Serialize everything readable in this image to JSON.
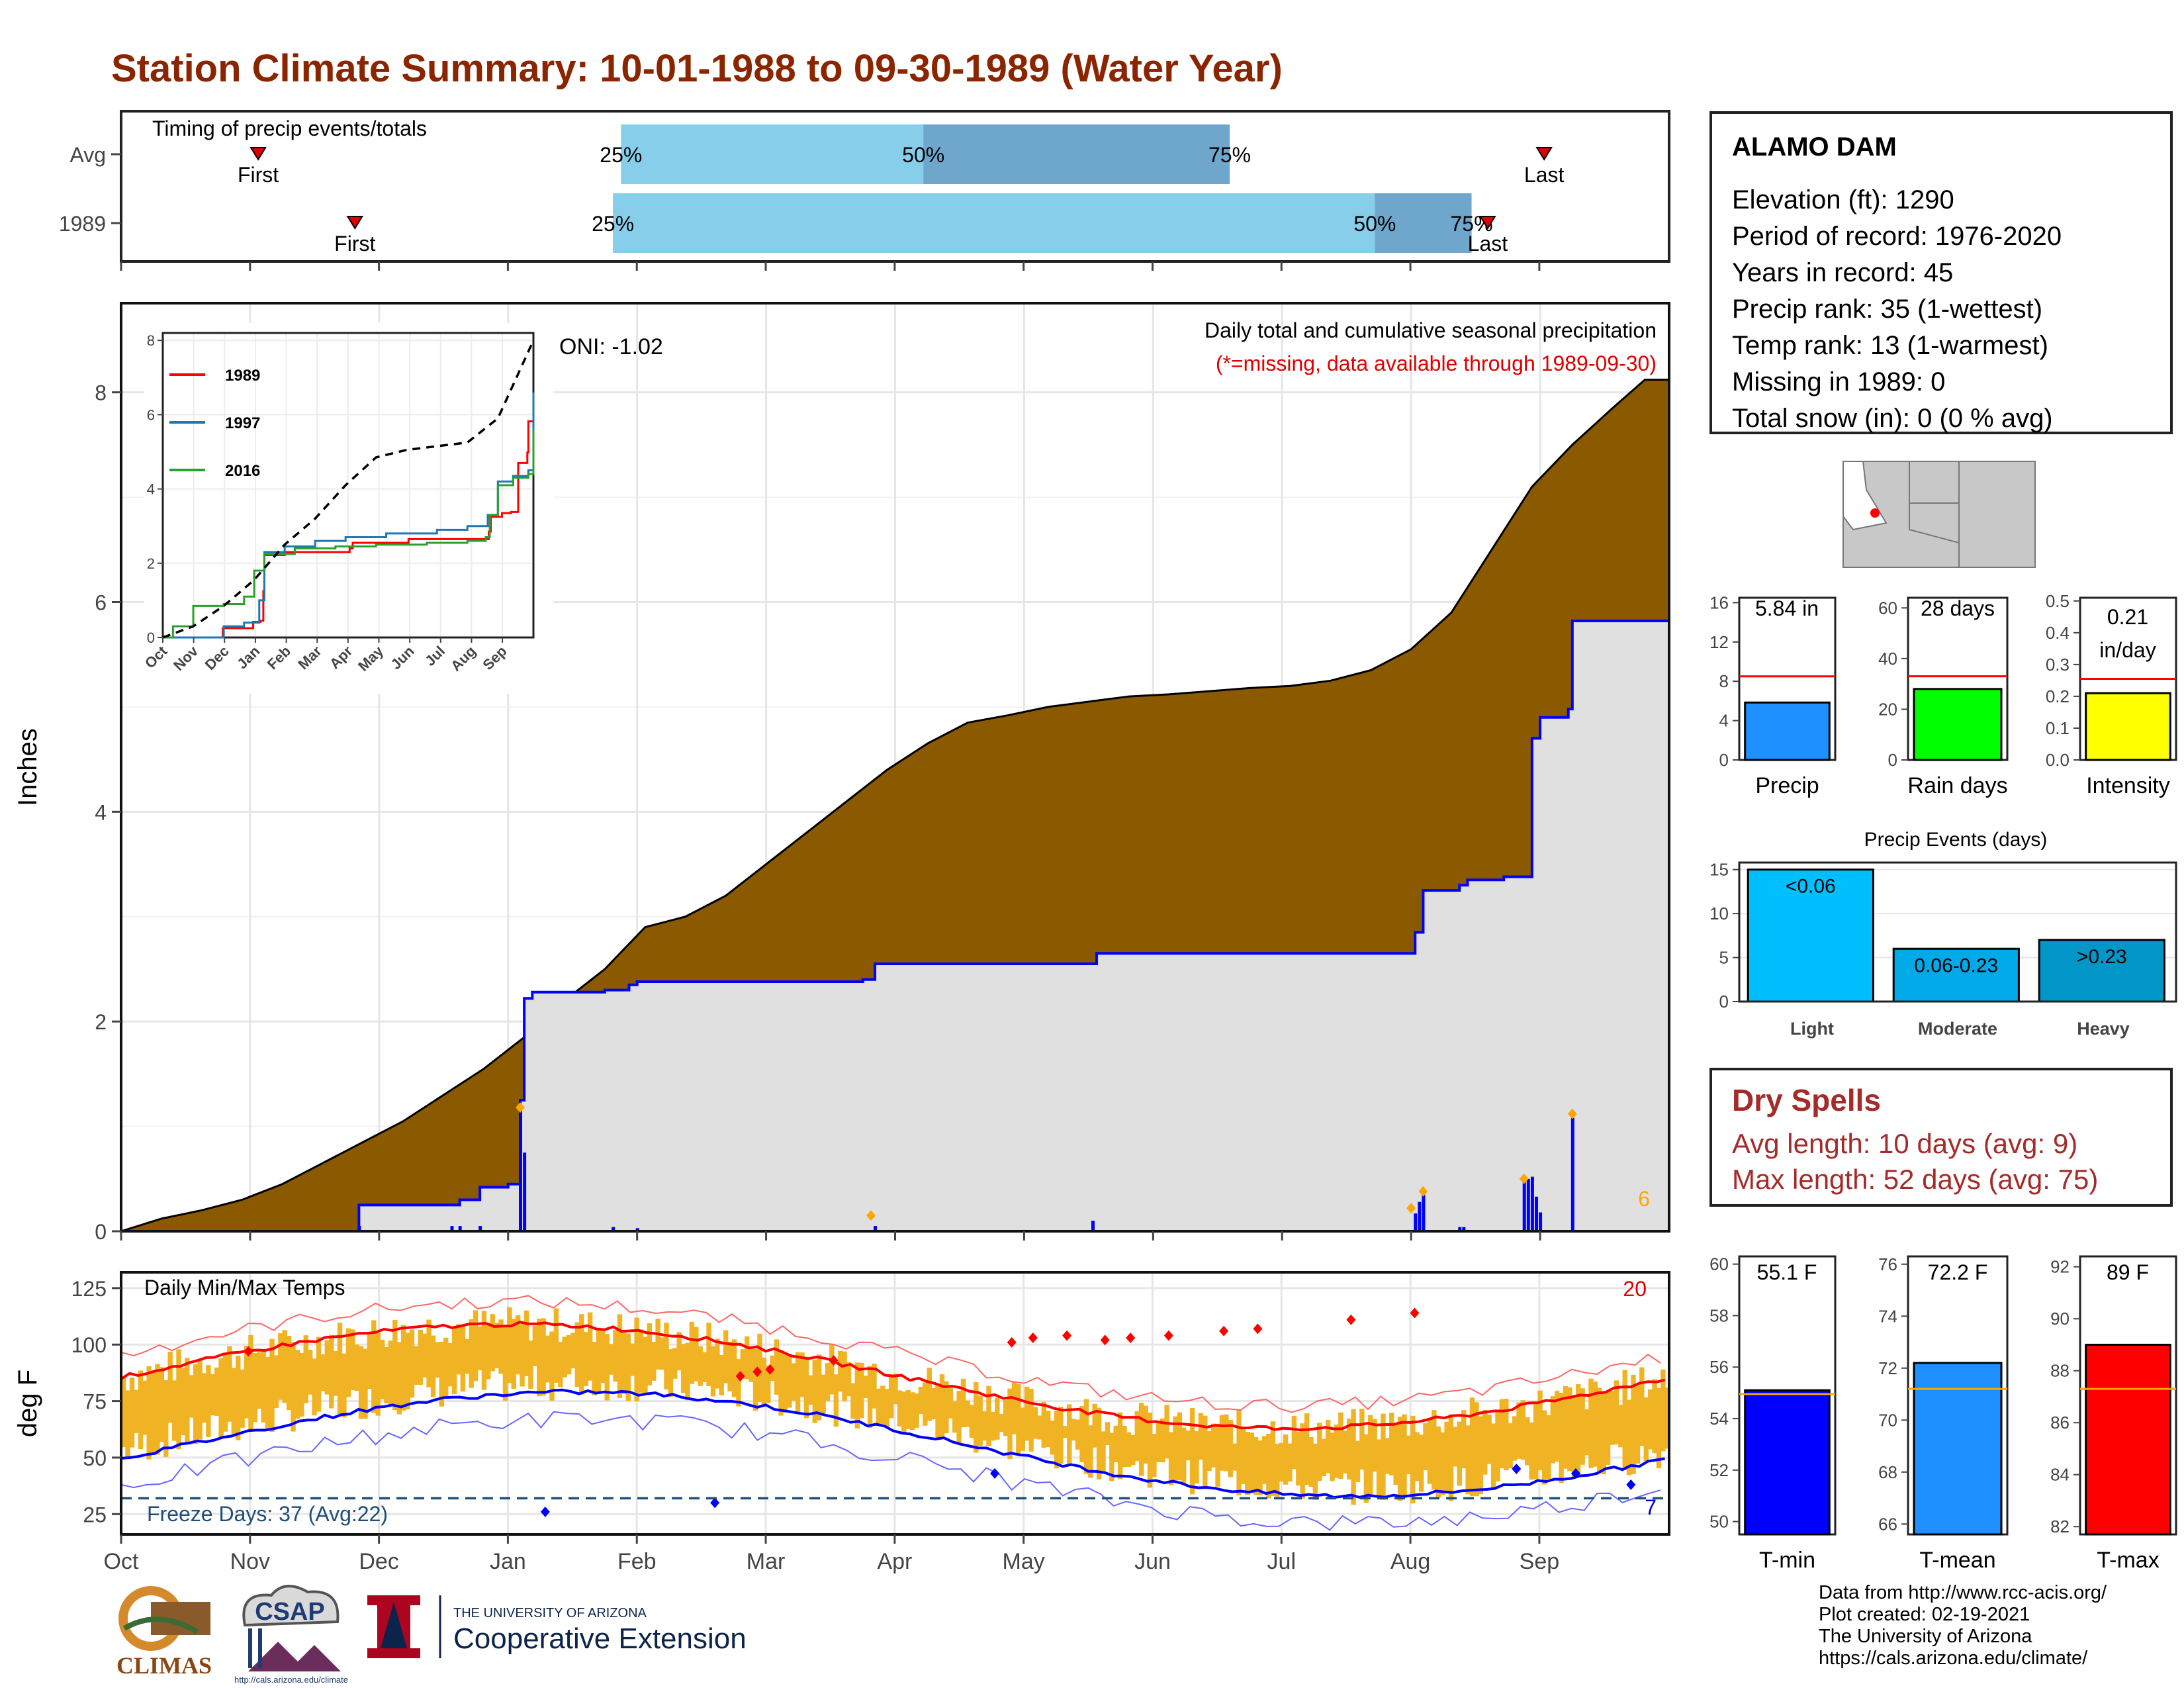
{
  "title": "Station Climate Summary: 10-01-1988 to 09-30-1989 (Water Year)",
  "timing": {
    "heading": "Timing of precip events/totals",
    "rows": [
      {
        "label": "Avg",
        "first_day": 34,
        "q25_day": 124,
        "q50_day": 199,
        "q75_day": 275,
        "last_day": 353
      },
      {
        "label": "1989",
        "first_day": 58,
        "q25_day": 122,
        "q50_day": 311,
        "q75_day": 335,
        "last_day": 339
      }
    ],
    "first_label": "First",
    "last_label": "Last",
    "q25_label": "25%",
    "q50_label": "50%",
    "q75_label": "75%"
  },
  "station": {
    "name": "ALAMO DAM",
    "lines": [
      "Elevation (ft): 1290",
      "Period of record: 1976-2020",
      "Years in record: 45",
      "Precip rank: 35 (1-wettest)",
      "Temp rank: 13 (1-warmest)",
      "Missing in 1989: 0",
      "Total snow (in): 0 (0 % avg)"
    ]
  },
  "colors": {
    "title": "#8B2500",
    "avg_cum": "#8B5A00",
    "year_fill": "#e0e0e0",
    "year_line": "#0000ff",
    "light_blue": "#87CEEB",
    "dark_blue": "#6FA6CC",
    "tmax_avg": "#ff0000",
    "tmin_avg": "#0000ff",
    "range_fill": "#F0B323",
    "record_dot": "#ff0000",
    "freeze": "#1f4e79"
  },
  "precip_main": {
    "ylabel": "Inches",
    "oni": "ONI: -1.02",
    "annot_line1": "Daily total and cumulative seasonal precipitation",
    "annot_line2": "(*=missing, data available through 1989-09-30)",
    "corner_count": "6",
    "y_ticks": [
      "0",
      "2",
      "4",
      "6",
      "8"
    ],
    "months": [
      "Oct",
      "Nov",
      "Dec",
      "Jan",
      "Feb",
      "Mar",
      "Apr",
      "May",
      "Jun",
      "Jul",
      "Aug",
      "Sep"
    ],
    "avg_cumulative_points": [
      [
        0,
        0.0
      ],
      [
        10,
        0.12
      ],
      [
        20,
        0.2
      ],
      [
        30,
        0.3
      ],
      [
        40,
        0.45
      ],
      [
        50,
        0.65
      ],
      [
        60,
        0.85
      ],
      [
        70,
        1.05
      ],
      [
        80,
        1.3
      ],
      [
        90,
        1.55
      ],
      [
        100,
        1.85
      ],
      [
        110,
        2.2
      ],
      [
        120,
        2.5
      ],
      [
        130,
        2.9
      ],
      [
        140,
        3.0
      ],
      [
        150,
        3.2
      ],
      [
        160,
        3.5
      ],
      [
        170,
        3.8
      ],
      [
        180,
        4.1
      ],
      [
        190,
        4.4
      ],
      [
        200,
        4.65
      ],
      [
        210,
        4.85
      ],
      [
        220,
        4.92
      ],
      [
        230,
        5.0
      ],
      [
        240,
        5.05
      ],
      [
        250,
        5.1
      ],
      [
        260,
        5.12
      ],
      [
        270,
        5.15
      ],
      [
        280,
        5.18
      ],
      [
        290,
        5.2
      ],
      [
        300,
        5.25
      ],
      [
        310,
        5.35
      ],
      [
        320,
        5.55
      ],
      [
        330,
        5.9
      ],
      [
        340,
        6.5
      ],
      [
        350,
        7.1
      ],
      [
        360,
        7.5
      ],
      [
        370,
        7.85
      ],
      [
        378,
        8.12
      ],
      [
        384,
        8.12
      ]
    ],
    "year_cumulative_points": [
      [
        0,
        0.0
      ],
      [
        48,
        0.0
      ],
      [
        58,
        0.0
      ],
      [
        59,
        0.25
      ],
      [
        82,
        0.25
      ],
      [
        84,
        0.3
      ],
      [
        89,
        0.42
      ],
      [
        96,
        0.45
      ],
      [
        99,
        1.25
      ],
      [
        100,
        2.22
      ],
      [
        102,
        2.28
      ],
      [
        120,
        2.3
      ],
      [
        126,
        2.35
      ],
      [
        128,
        2.38
      ],
      [
        184,
        2.4
      ],
      [
        187,
        2.55
      ],
      [
        241,
        2.55
      ],
      [
        242,
        2.65
      ],
      [
        318,
        2.65
      ],
      [
        321,
        2.85
      ],
      [
        323,
        3.25
      ],
      [
        332,
        3.3
      ],
      [
        334,
        3.35
      ],
      [
        343,
        3.38
      ],
      [
        350,
        4.7
      ],
      [
        352,
        4.9
      ],
      [
        359,
        4.98
      ],
      [
        360,
        5.82
      ],
      [
        384,
        5.82
      ]
    ],
    "daily_bars": [
      [
        59,
        0.05
      ],
      [
        82,
        0.05
      ],
      [
        84,
        0.05
      ],
      [
        89,
        0.05
      ],
      [
        99,
        1.18
      ],
      [
        100,
        0.75
      ],
      [
        122,
        0.04
      ],
      [
        128,
        0.03
      ],
      [
        187,
        0.05
      ],
      [
        241,
        0.1
      ],
      [
        321,
        0.17
      ],
      [
        322,
        0.28
      ],
      [
        323,
        0.37
      ],
      [
        332,
        0.04
      ],
      [
        333,
        0.04
      ],
      [
        348,
        0.48
      ],
      [
        349,
        0.5
      ],
      [
        350,
        0.52
      ],
      [
        351,
        0.33
      ],
      [
        352,
        0.18
      ],
      [
        360,
        1.08
      ]
    ],
    "diamond_days": [
      [
        99,
        1.18
      ],
      [
        186,
        0.15
      ],
      [
        320,
        0.22
      ],
      [
        323,
        0.38
      ],
      [
        348,
        0.5
      ],
      [
        360,
        1.12
      ]
    ],
    "inset": {
      "y_ticks": [
        "0",
        "2",
        "4",
        "6",
        "8"
      ],
      "months": [
        "Oct",
        "Nov",
        "Dec",
        "Jan",
        "Feb",
        "Mar",
        "Apr",
        "May",
        "Jun",
        "Jul",
        "Aug",
        "Sep"
      ],
      "series": [
        {
          "name": "1989",
          "color": "#ff0000",
          "values": [
            [
              0,
              0
            ],
            [
              58,
              0
            ],
            [
              59,
              0.25
            ],
            [
              89,
              0.42
            ],
            [
              96,
              0.45
            ],
            [
              99,
              1.25
            ],
            [
              100,
              2.22
            ],
            [
              120,
              2.3
            ],
            [
              184,
              2.4
            ],
            [
              187,
              2.55
            ],
            [
              241,
              2.55
            ],
            [
              242,
              2.65
            ],
            [
              318,
              2.65
            ],
            [
              321,
              2.85
            ],
            [
              323,
              3.25
            ],
            [
              334,
              3.35
            ],
            [
              343,
              3.38
            ],
            [
              350,
              4.7
            ],
            [
              359,
              4.98
            ],
            [
              360,
              5.82
            ],
            [
              365,
              5.82
            ]
          ]
        },
        {
          "name": "1997",
          "color": "#1f77b4",
          "values": [
            [
              0,
              0
            ],
            [
              40,
              0
            ],
            [
              60,
              0.3
            ],
            [
              80,
              0.4
            ],
            [
              95,
              1.0
            ],
            [
              100,
              2.3
            ],
            [
              120,
              2.45
            ],
            [
              150,
              2.6
            ],
            [
              180,
              2.7
            ],
            [
              220,
              2.8
            ],
            [
              270,
              2.9
            ],
            [
              300,
              3.0
            ],
            [
              320,
              3.3
            ],
            [
              330,
              4.2
            ],
            [
              345,
              4.35
            ],
            [
              360,
              4.5
            ],
            [
              365,
              6.6
            ]
          ]
        },
        {
          "name": "2016",
          "color": "#2ca02c",
          "values": [
            [
              0,
              0
            ],
            [
              10,
              0.3
            ],
            [
              30,
              0.85
            ],
            [
              60,
              0.9
            ],
            [
              80,
              1.1
            ],
            [
              90,
              1.8
            ],
            [
              100,
              2.25
            ],
            [
              130,
              2.4
            ],
            [
              170,
              2.45
            ],
            [
              210,
              2.5
            ],
            [
              260,
              2.55
            ],
            [
              300,
              2.6
            ],
            [
              318,
              2.7
            ],
            [
              322,
              3.3
            ],
            [
              330,
              4.1
            ],
            [
              345,
              4.3
            ],
            [
              360,
              4.4
            ],
            [
              365,
              5.6
            ]
          ]
        }
      ],
      "avg_points": [
        [
          0,
          0
        ],
        [
          30,
          0.3
        ],
        [
          60,
          0.85
        ],
        [
          90,
          1.55
        ],
        [
          120,
          2.5
        ],
        [
          150,
          3.2
        ],
        [
          180,
          4.1
        ],
        [
          210,
          4.85
        ],
        [
          240,
          5.05
        ],
        [
          270,
          5.15
        ],
        [
          300,
          5.25
        ],
        [
          330,
          5.9
        ],
        [
          350,
          7.1
        ],
        [
          365,
          8.0
        ]
      ]
    }
  },
  "temp_main": {
    "ylabel": "deg F",
    "heading": "Daily Min/Max Temps",
    "freeze_label": "Freeze Days: 37 (Avg:22)",
    "record_high_count": "20",
    "record_low_count": "7",
    "freeze_level": 32,
    "y_ticks": [
      "25",
      "50",
      "75",
      "100",
      "125"
    ],
    "months": [
      "Oct",
      "Nov",
      "Dec",
      "Jan",
      "Feb",
      "Mar",
      "Apr",
      "May",
      "Jun",
      "Jul",
      "Aug",
      "Sep"
    ]
  },
  "bar_panels": {
    "precip": {
      "label": "Precip",
      "value_text": "5.84 in",
      "value": 5.84,
      "avg": 8.5,
      "ymax": 16.5,
      "ticks": [
        "0",
        "4",
        "8",
        "12",
        "16"
      ],
      "tick_vals": [
        0,
        4,
        8,
        12,
        16
      ],
      "color": "#1E90FF"
    },
    "rain_days": {
      "label": "Rain days",
      "value_text": "28 days",
      "value": 28,
      "avg": 33,
      "ymax": 64,
      "ticks": [
        "0",
        "20",
        "40",
        "60"
      ],
      "tick_vals": [
        0,
        20,
        40,
        60
      ],
      "color": "#00ff00"
    },
    "intensity": {
      "label": "Intensity",
      "value_text1": "0.21",
      "value_text2": "in/day",
      "value": 0.21,
      "avg": 0.255,
      "ymax": 0.51,
      "ticks": [
        "0.0",
        "0.1",
        "0.2",
        "0.3",
        "0.4",
        "0.5"
      ],
      "tick_vals": [
        0,
        0.1,
        0.2,
        0.3,
        0.4,
        0.5
      ],
      "color": "#ffff00"
    }
  },
  "events": {
    "title": "Precip Events (days)",
    "ticks": [
      "0",
      "5",
      "10",
      "15"
    ],
    "tick_vals": [
      0,
      5,
      10,
      15
    ],
    "ymax": 15.8,
    "categories": [
      "Light",
      "Moderate",
      "Heavy"
    ],
    "labels": [
      "<0.06",
      "0.06-0.23",
      ">0.23"
    ],
    "values": [
      15,
      6,
      7
    ],
    "colors": [
      "#00BFFF",
      "#00A9E8",
      "#0096C7"
    ]
  },
  "dry_spells": {
    "heading": "Dry Spells",
    "avg_line": "Avg length: 10 days (avg: 9)",
    "max_line": "Max length: 52 days (avg: 75)"
  },
  "temp_panels": {
    "tmin": {
      "label": "T-min",
      "value_text": "55.1 F",
      "value": 55.1,
      "avg": 54.95,
      "ymin": 49.5,
      "ymax": 60.3,
      "ticks": [
        "50",
        "52",
        "54",
        "56",
        "58",
        "60"
      ],
      "tick_vals": [
        50,
        52,
        54,
        56,
        58,
        60
      ],
      "color": "#0000ff"
    },
    "tmean": {
      "label": "T-mean",
      "value_text": "72.2 F",
      "value": 72.2,
      "avg": 71.2,
      "ymin": 65.6,
      "ymax": 76.3,
      "ticks": [
        "66",
        "68",
        "70",
        "72",
        "74",
        "76"
      ],
      "tick_vals": [
        66,
        68,
        70,
        72,
        74,
        76
      ],
      "color": "#1E90FF"
    },
    "tmax": {
      "label": "T-max",
      "value_text": "89 F",
      "value": 89,
      "avg": 87.3,
      "ymin": 81.7,
      "ymax": 92.4,
      "ticks": [
        "82",
        "84",
        "86",
        "88",
        "90",
        "92"
      ],
      "tick_vals": [
        82,
        84,
        86,
        88,
        90,
        92
      ],
      "color": "#ff0000"
    }
  },
  "credits": [
    "Data from http://www.rcc-acis.org/",
    "Plot created: 02-19-2021",
    "The University of Arizona",
    "https://cals.arizona.edu/climate/"
  ],
  "logos": {
    "climas": "CLIMAS",
    "csap": "CSAP",
    "csap_url": "http://cals.arizona.edu/climate",
    "ua_line1": "THE UNIVERSITY OF ARIZONA",
    "ua_line2": "Cooperative Extension"
  }
}
